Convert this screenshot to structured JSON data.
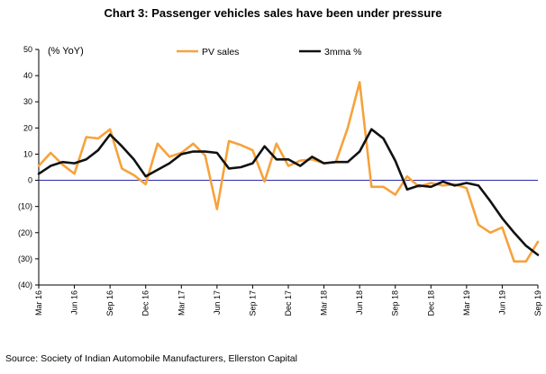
{
  "chart_data": {
    "type": "line",
    "title": "Chart 3: Passenger vehicles sales have been under pressure",
    "ylabel": "(% YoY)",
    "xlabel": "",
    "ylim": [
      -40,
      50
    ],
    "yticks": [
      50,
      40,
      30,
      20,
      10,
      0,
      -10,
      -20,
      -30,
      -40
    ],
    "ytick_labels": [
      "50",
      "40",
      "30",
      "20",
      "10",
      "0",
      "(10)",
      "(20)",
      "(30)",
      "(40)"
    ],
    "grid": false,
    "legend_position": "top",
    "x": [
      "Mar 16",
      "Apr 16",
      "May 16",
      "Jun 16",
      "Jul 16",
      "Aug 16",
      "Sep 16",
      "Oct 16",
      "Nov 16",
      "Dec 16",
      "Jan 17",
      "Feb 17",
      "Mar 17",
      "Apr 17",
      "May 17",
      "Jun 17",
      "Jul 17",
      "Aug 17",
      "Sep 17",
      "Oct 17",
      "Nov 17",
      "Dec 17",
      "Jan 18",
      "Feb 18",
      "Mar 18",
      "Apr 18",
      "May 18",
      "Jun 18",
      "Jul 18",
      "Aug 18",
      "Sep 18",
      "Oct 18",
      "Nov 18",
      "Dec 18",
      "Jan 19",
      "Feb 19",
      "Mar 19",
      "Apr 19",
      "May 19",
      "Jun 19",
      "Jul 19",
      "Aug 19",
      "Sep 19"
    ],
    "x_tick_labels": [
      "Mar 16",
      "Jun 16",
      "Sep 16",
      "Dec 16",
      "Mar 17",
      "Jun 17",
      "Sep 17",
      "Dec 17",
      "Mar 18",
      "Jun 18",
      "Sep 18",
      "Dec 18",
      "Mar 19",
      "Jun 19",
      "Sep 19"
    ],
    "series": [
      {
        "name": "PV sales",
        "color": "#F7A23B",
        "values": [
          5.5,
          10.5,
          6,
          2.5,
          16.5,
          16,
          19.5,
          4.5,
          2,
          -1.5,
          14,
          9,
          10.5,
          14,
          9.5,
          -11,
          15,
          13.5,
          11.5,
          -0.5,
          14,
          5.5,
          7.5,
          8,
          6.5,
          7,
          20,
          37.5,
          -2.5,
          -2.5,
          -5.5,
          1.5,
          -2.5,
          -1,
          -2,
          -1.5,
          -3,
          -17,
          -20,
          -18,
          -31,
          -31,
          -23.5
        ]
      },
      {
        "name": "3mma %",
        "color": "#111111",
        "values": [
          2.5,
          5.5,
          7,
          6.5,
          8,
          11.5,
          17.5,
          13,
          8,
          1.5,
          4,
          6.5,
          10,
          11,
          11,
          10.5,
          4.5,
          5,
          6.5,
          13,
          8,
          8,
          5.5,
          9,
          6.5,
          7,
          7,
          11,
          19.5,
          16,
          7.5,
          -3.5,
          -2,
          -2.5,
          -0.5,
          -2,
          -1,
          -2,
          -8,
          -14.5,
          -20,
          -25,
          -28.5
        ]
      }
    ]
  },
  "source": "Source:  Society of Indian Automobile Manufacturers,  Ellerston Capital"
}
